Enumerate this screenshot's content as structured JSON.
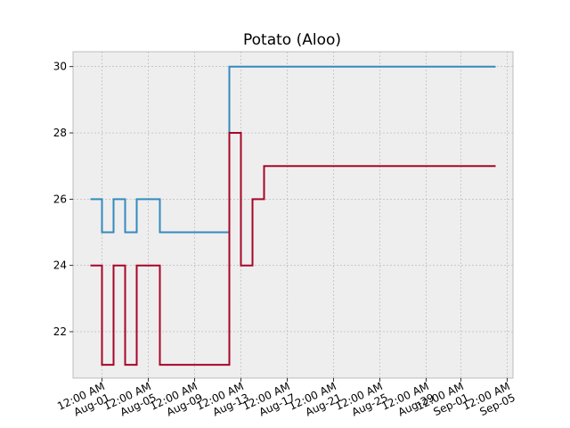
{
  "chart_data": {
    "type": "line",
    "title": "Potato (Aloo)",
    "xlabel": "",
    "ylabel": "",
    "x_axis": {
      "type": "date",
      "ticks": [
        {
          "date": "2021-08-01",
          "label": "12:00 AM\nAug-01"
        },
        {
          "date": "2021-08-05",
          "label": "12:00 AM\nAug-05"
        },
        {
          "date": "2021-08-09",
          "label": "12:00 AM\nAug-09"
        },
        {
          "date": "2021-08-13",
          "label": "12:00 AM\nAug-13"
        },
        {
          "date": "2021-08-17",
          "label": "12:00 AM\nAug-17"
        },
        {
          "date": "2021-08-21",
          "label": "12:00 AM\nAug-21"
        },
        {
          "date": "2021-08-25",
          "label": "12:00 AM\nAug-25"
        },
        {
          "date": "2021-08-29",
          "label": "12:00 AM\nAug-29"
        },
        {
          "date": "2021-09-01",
          "label": "12:00 AM\nSep-01"
        },
        {
          "date": "2021-09-05",
          "label": "12:00 AM\nSep-05"
        }
      ],
      "range": [
        "2021-07-29T12:00",
        "2021-09-05T12:00"
      ]
    },
    "y_axis": {
      "ticks": [
        22,
        24,
        26,
        28,
        30
      ],
      "range": [
        20.6,
        30.45
      ]
    },
    "grid": true,
    "step": "post",
    "series": [
      {
        "color": "#348ABD",
        "x": [
          "2021-07-31",
          "2021-08-01",
          "2021-08-02",
          "2021-08-03",
          "2021-08-04",
          "2021-08-05",
          "2021-08-06",
          "2021-08-07",
          "2021-08-08",
          "2021-08-09",
          "2021-08-10",
          "2021-08-11",
          "2021-08-12",
          "2021-08-13",
          "2021-08-14",
          "2021-08-15",
          "2021-09-04"
        ],
        "y": [
          26,
          25,
          26,
          25,
          26,
          26,
          25,
          25,
          25,
          25,
          25,
          25,
          30,
          30,
          30,
          30,
          30
        ]
      },
      {
        "color": "#A60628",
        "x": [
          "2021-07-31",
          "2021-08-01",
          "2021-08-02",
          "2021-08-03",
          "2021-08-04",
          "2021-08-05",
          "2021-08-06",
          "2021-08-07",
          "2021-08-08",
          "2021-08-09",
          "2021-08-10",
          "2021-08-11",
          "2021-08-12",
          "2021-08-13",
          "2021-08-14",
          "2021-08-15",
          "2021-09-04"
        ],
        "y": [
          24,
          21,
          24,
          21,
          24,
          24,
          21,
          21,
          21,
          21,
          21,
          21,
          28,
          24,
          26,
          27,
          27
        ]
      }
    ]
  }
}
